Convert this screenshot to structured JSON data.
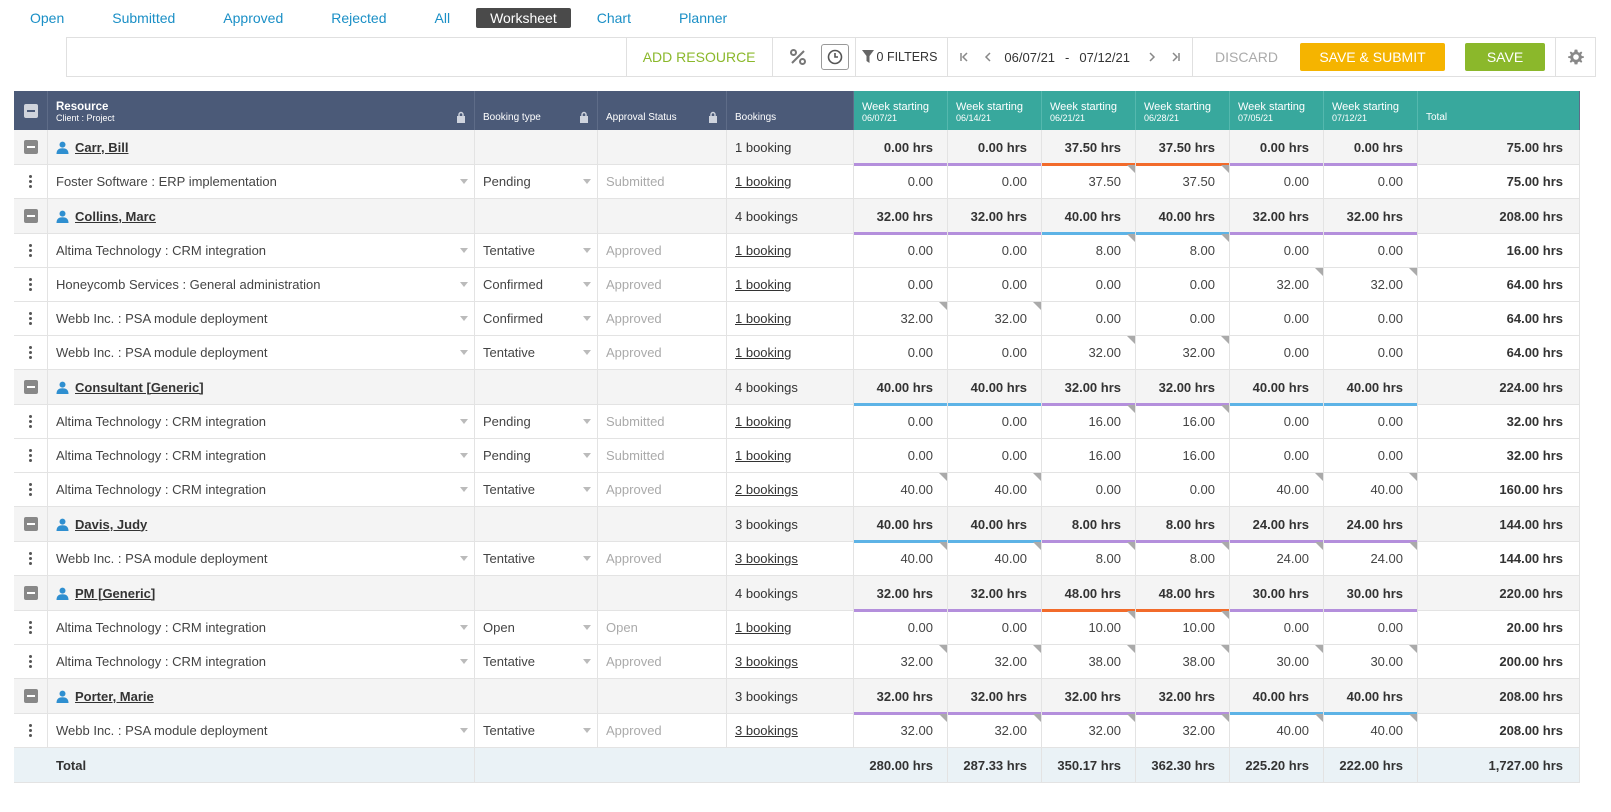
{
  "tabs": [
    "Open",
    "Submitted",
    "Approved",
    "Rejected",
    "All",
    "Worksheet",
    "Chart",
    "Planner"
  ],
  "active_tab": "Worksheet",
  "toolbar": {
    "add_resource": "ADD RESOURCE",
    "filters": "0 FILTERS",
    "date_from": "06/07/21",
    "date_sep": "-",
    "date_to": "07/12/21",
    "discard": "DISCARD",
    "save_submit": "SAVE & SUBMIT",
    "save": "SAVE"
  },
  "header": {
    "resource": "Resource",
    "resource_sub": "Client : Project",
    "booking_type": "Booking type",
    "approval_status": "Approval Status",
    "bookings": "Bookings",
    "week_label": "Week starting",
    "weeks": [
      "06/07/21",
      "06/14/21",
      "06/21/21",
      "06/28/21",
      "07/05/21",
      "07/12/21"
    ],
    "total": "Total"
  },
  "colors": {
    "header_bg": "#4b5a78",
    "week_header_bg": "#38a89d",
    "save_submit": "#f5b400",
    "save": "#8bb82b",
    "bar_purple": "#b48fdc",
    "bar_orange": "#f26b2b",
    "bar_blue": "#5db3e6"
  },
  "groups": [
    {
      "name": "Carr, Bill",
      "bookings": "1 booking",
      "weeks": [
        "0.00 hrs",
        "0.00 hrs",
        "37.50 hrs",
        "37.50 hrs",
        "0.00 hrs",
        "0.00 hrs"
      ],
      "bars": [
        "purple",
        "purple",
        "orange",
        "orange",
        "purple",
        "purple"
      ],
      "total": "75.00 hrs",
      "rows": [
        {
          "project": "Foster Software : ERP implementation",
          "type": "Pending",
          "status": "Submitted",
          "link": "1 booking",
          "weeks": [
            "0.00",
            "0.00",
            "37.50",
            "37.50",
            "0.00",
            "0.00"
          ],
          "flags": [
            false,
            false,
            true,
            true,
            false,
            false
          ],
          "total": "75.00 hrs",
          "dim": true
        }
      ]
    },
    {
      "name": "Collins, Marc",
      "bookings": "4 bookings",
      "weeks": [
        "32.00 hrs",
        "32.00 hrs",
        "40.00 hrs",
        "40.00 hrs",
        "32.00 hrs",
        "32.00 hrs"
      ],
      "bars": [
        "purple",
        "purple",
        "blue",
        "blue",
        "purple",
        "purple"
      ],
      "total": "208.00 hrs",
      "rows": [
        {
          "project": "Altima Technology : CRM integration",
          "type": "Tentative",
          "status": "Approved",
          "link": "1 booking",
          "weeks": [
            "0.00",
            "0.00",
            "8.00",
            "8.00",
            "0.00",
            "0.00"
          ],
          "flags": [
            false,
            false,
            true,
            true,
            false,
            false
          ],
          "total": "16.00 hrs",
          "dim": false
        },
        {
          "project": "Honeycomb Services : General administration",
          "type": "Confirmed",
          "status": "Approved",
          "link": "1 booking",
          "weeks": [
            "0.00",
            "0.00",
            "0.00",
            "0.00",
            "32.00",
            "32.00"
          ],
          "flags": [
            false,
            false,
            false,
            false,
            true,
            true
          ],
          "total": "64.00 hrs",
          "dim": false
        },
        {
          "project": "Webb Inc. : PSA module deployment",
          "type": "Confirmed",
          "status": "Approved",
          "link": "1 booking",
          "weeks": [
            "32.00",
            "32.00",
            "0.00",
            "0.00",
            "0.00",
            "0.00"
          ],
          "flags": [
            true,
            true,
            false,
            false,
            false,
            false
          ],
          "total": "64.00 hrs",
          "dim": false
        },
        {
          "project": "Webb Inc. : PSA module deployment",
          "type": "Tentative",
          "status": "Approved",
          "link": "1 booking",
          "weeks": [
            "0.00",
            "0.00",
            "32.00",
            "32.00",
            "0.00",
            "0.00"
          ],
          "flags": [
            false,
            false,
            true,
            true,
            false,
            false
          ],
          "total": "64.00 hrs",
          "dim": false
        }
      ]
    },
    {
      "name": "Consultant [Generic]",
      "bookings": "4 bookings",
      "weeks": [
        "40.00 hrs",
        "40.00 hrs",
        "32.00 hrs",
        "32.00 hrs",
        "40.00 hrs",
        "40.00 hrs"
      ],
      "bars": [
        "blue",
        "blue",
        "purple",
        "purple",
        "blue",
        "blue"
      ],
      "total": "224.00 hrs",
      "rows": [
        {
          "project": "Altima Technology : CRM integration",
          "type": "Pending",
          "status": "Submitted",
          "link": "1 booking",
          "weeks": [
            "0.00",
            "0.00",
            "16.00",
            "16.00",
            "0.00",
            "0.00"
          ],
          "flags": [
            false,
            false,
            true,
            true,
            false,
            false
          ],
          "total": "32.00 hrs",
          "dim": true
        },
        {
          "project": "Altima Technology : CRM integration",
          "type": "Pending",
          "status": "Submitted",
          "link": "1 booking",
          "weeks": [
            "0.00",
            "0.00",
            "16.00",
            "16.00",
            "0.00",
            "0.00"
          ],
          "flags": [
            false,
            false,
            false,
            false,
            false,
            false
          ],
          "total": "32.00 hrs",
          "dim": true
        },
        {
          "project": "Altima Technology : CRM integration",
          "type": "Tentative",
          "status": "Approved",
          "link": "2 bookings",
          "weeks": [
            "40.00",
            "40.00",
            "0.00",
            "0.00",
            "40.00",
            "40.00"
          ],
          "flags": [
            true,
            true,
            false,
            false,
            true,
            true
          ],
          "total": "160.00 hrs",
          "dim": false
        }
      ]
    },
    {
      "name": "Davis, Judy",
      "bookings": "3 bookings",
      "weeks": [
        "40.00 hrs",
        "40.00 hrs",
        "8.00 hrs",
        "8.00 hrs",
        "24.00 hrs",
        "24.00 hrs"
      ],
      "bars": [
        "blue",
        "blue",
        "purple",
        "purple",
        "purple",
        "purple"
      ],
      "total": "144.00 hrs",
      "rows": [
        {
          "project": "Webb Inc. : PSA module deployment",
          "type": "Tentative",
          "status": "Approved",
          "link": "3 bookings",
          "weeks": [
            "40.00",
            "40.00",
            "8.00",
            "8.00",
            "24.00",
            "24.00"
          ],
          "flags": [
            true,
            true,
            true,
            true,
            true,
            true
          ],
          "total": "144.00 hrs",
          "dim": false
        }
      ]
    },
    {
      "name": "PM [Generic]",
      "bookings": "4 bookings",
      "weeks": [
        "32.00 hrs",
        "32.00 hrs",
        "48.00 hrs",
        "48.00 hrs",
        "30.00 hrs",
        "30.00 hrs"
      ],
      "bars": [
        "purple",
        "purple",
        "orange",
        "orange",
        "purple",
        "purple"
      ],
      "total": "220.00 hrs",
      "rows": [
        {
          "project": "Altima Technology : CRM integration",
          "type": "Open",
          "status": "Open",
          "link": "1 booking",
          "weeks": [
            "0.00",
            "0.00",
            "10.00",
            "10.00",
            "0.00",
            "0.00"
          ],
          "flags": [
            false,
            false,
            true,
            true,
            false,
            false
          ],
          "total": "20.00 hrs",
          "dim": false
        },
        {
          "project": "Altima Technology : CRM integration",
          "type": "Tentative",
          "status": "Approved",
          "link": "3 bookings",
          "weeks": [
            "32.00",
            "32.00",
            "38.00",
            "38.00",
            "30.00",
            "30.00"
          ],
          "flags": [
            true,
            true,
            true,
            true,
            true,
            true
          ],
          "total": "200.00 hrs",
          "dim": false
        }
      ]
    },
    {
      "name": "Porter, Marie",
      "bookings": "3 bookings",
      "weeks": [
        "32.00 hrs",
        "32.00 hrs",
        "32.00 hrs",
        "32.00 hrs",
        "40.00 hrs",
        "40.00 hrs"
      ],
      "bars": [
        "purple",
        "purple",
        "purple",
        "purple",
        "blue",
        "blue"
      ],
      "total": "208.00 hrs",
      "rows": [
        {
          "project": "Webb Inc. : PSA module deployment",
          "type": "Tentative",
          "status": "Approved",
          "link": "3 bookings",
          "weeks": [
            "32.00",
            "32.00",
            "32.00",
            "32.00",
            "40.00",
            "40.00"
          ],
          "flags": [
            true,
            true,
            true,
            true,
            true,
            true
          ],
          "total": "208.00 hrs",
          "dim": false
        }
      ]
    }
  ],
  "totals": {
    "label": "Total",
    "weeks": [
      "280.00 hrs",
      "287.33 hrs",
      "350.17 hrs",
      "362.30 hrs",
      "225.20 hrs",
      "222.00 hrs"
    ],
    "total": "1,727.00 hrs"
  }
}
